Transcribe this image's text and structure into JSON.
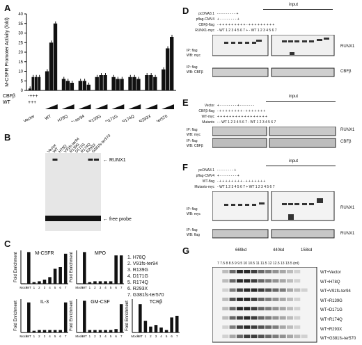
{
  "panels": {
    "A": {
      "label": "A",
      "ylabel": "M-CSFR Promoter Activity (fold)",
      "row_labels": [
        "CBFβ",
        "WT"
      ],
      "row_signs": [
        "-+++",
        "+++"
      ],
      "yticks": [
        "0",
        "5",
        "10",
        "15",
        "20",
        "25",
        "30",
        "35",
        "40"
      ],
      "groups": [
        "Vector",
        "WT",
        "H78Q",
        "V91fs-ter94",
        "R139G",
        "D171G",
        "R174Q",
        "R293X",
        "G381fs-ter570"
      ]
    },
    "B": {
      "label": "B",
      "lanes": [
        "Vector",
        "WT",
        "H78Q",
        "V91fs-ter94",
        "R139G",
        "D171G",
        "R174Q",
        "R293X",
        "G381fs-ter570"
      ],
      "band_label": "RUNX1",
      "probe_label": "free probe"
    },
    "C": {
      "label": "C",
      "ylabel": "Fold Enrichment",
      "legend": [
        "1. H78Q",
        "2. V91fs-ter94",
        "3. R139G",
        "4. D171G",
        "5. R174Q",
        "6. R293X",
        "7. G381fs-ter570"
      ],
      "xticks": [
        "Mock",
        "WT",
        "1",
        "2",
        "3",
        "4",
        "5",
        "6",
        "7"
      ],
      "charts": [
        {
          "title": "M-CSFR",
          "values": [
            0.5,
            38,
            2,
            3,
            5,
            8,
            18,
            20,
            36
          ]
        },
        {
          "title": "MPO",
          "values": [
            0.5,
            38,
            2,
            3,
            3,
            3,
            3,
            34,
            34
          ]
        },
        {
          "title": "IL-3",
          "values": [
            0.5,
            36,
            2,
            3,
            3,
            3,
            3,
            3,
            36
          ]
        },
        {
          "title": "GM-CSF",
          "values": [
            0.5,
            38,
            3,
            3,
            3,
            3,
            3,
            4,
            34
          ]
        },
        {
          "title": "TCRβ",
          "values": [
            0.5,
            34,
            14,
            7,
            9,
            6,
            3,
            18,
            20
          ]
        }
      ]
    },
    "D": {
      "label": "D",
      "input_label": "input",
      "rows": [
        {
          "name": "pcDNA3.1",
          "signs": "- - - - - - - - - +"
        },
        {
          "name": "pflag-CMV4",
          "signs": "+ - - - - - - - - +"
        },
        {
          "name": "CBFβ-flag",
          "signs": "- + + + + + + + + + - + + + + + + + + +"
        },
        {
          "name": "RUNX1-myc",
          "signs": "- WT 1 2 3 4 5 6 7 + - WT 1 2 3 4 5 6 7"
        }
      ],
      "ip1": [
        "IP: flag",
        "WB: myc"
      ],
      "ip2": [
        "IP: flag",
        "WB: CBFβ"
      ],
      "right1": "RUNX1",
      "right2": "CBFβ"
    },
    "E": {
      "label": "E",
      "input_label": "input",
      "rows": [
        {
          "name": "Vector",
          "signs": "+ - - - - - - - - + - - - - - - -"
        },
        {
          "name": "CBFβ-flag",
          "signs": "- + + + + + + + + - + + + + + + +"
        },
        {
          "name": "WT-myc",
          "signs": "+ + + + + + + + + + + + + + + + +"
        },
        {
          "name": "Mutants",
          "signs": "- - WT 1 2 3 4 5 6 7 - WT 1 2 3 4 5 6 7"
        }
      ],
      "ip1": [
        "IP: flag",
        "WB: myc"
      ],
      "ip2": [
        "IP: flag",
        "WB: CBFβ"
      ],
      "right1": "RUNX1",
      "right2": "CBFβ"
    },
    "F": {
      "label": "F",
      "input_label": "input",
      "rows": [
        {
          "name": "pcDNA3.1",
          "signs": "- - - - - - - - +"
        },
        {
          "name": "pflag-CMV4",
          "signs": "+ - - - - - - - - +"
        },
        {
          "name": "WT-flag",
          "signs": "- + + + + + + + + - + + + + + + +"
        },
        {
          "name": "Mutants-myc",
          "signs": "- WT 1 2 3 4 5 6 7 + WT 1 2 3 4 5 6 7"
        }
      ],
      "ip1": [
        "IP: flag",
        "WB: myc"
      ],
      "ip2": [
        "IP: flag",
        "WB: flag"
      ],
      "right1": "RUNX1",
      "right2": "RUNX1"
    },
    "G": {
      "label": "G",
      "markers": [
        "669kd",
        "440kd",
        "158kd"
      ],
      "fractions": "7 7.5 8 8.5 9 9.5 10 10.5 11 11.5 12 12.5 13 13.5 (ml)",
      "lanes": [
        "WT+Vector",
        "WT+H78Q",
        "WT+V91fs-ter94",
        "WT+R139G",
        "WT+D171G",
        "WT+R174Q",
        "WT+R293X",
        "WT+G381fs-ter570"
      ]
    }
  },
  "chart_data": [
    {
      "type": "bar",
      "title": "",
      "ylabel": "M-CSFR Promoter Activity (fold)",
      "ylim": [
        0,
        40
      ],
      "categories": [
        "Vector",
        "WT",
        "H78Q",
        "V91fs-ter94",
        "R139G",
        "D171G",
        "R174Q",
        "R293X",
        "G381fs-ter570"
      ],
      "values_per_group": [
        [
          1,
          7,
          7,
          7
        ],
        [
          10,
          25,
          35
        ],
        [
          6,
          5,
          4
        ],
        [
          5,
          5,
          3
        ],
        [
          7,
          8,
          8
        ],
        [
          7,
          6,
          6
        ],
        [
          7,
          7,
          6
        ],
        [
          8,
          8,
          7
        ],
        [
          11,
          22,
          28
        ]
      ]
    }
  ]
}
